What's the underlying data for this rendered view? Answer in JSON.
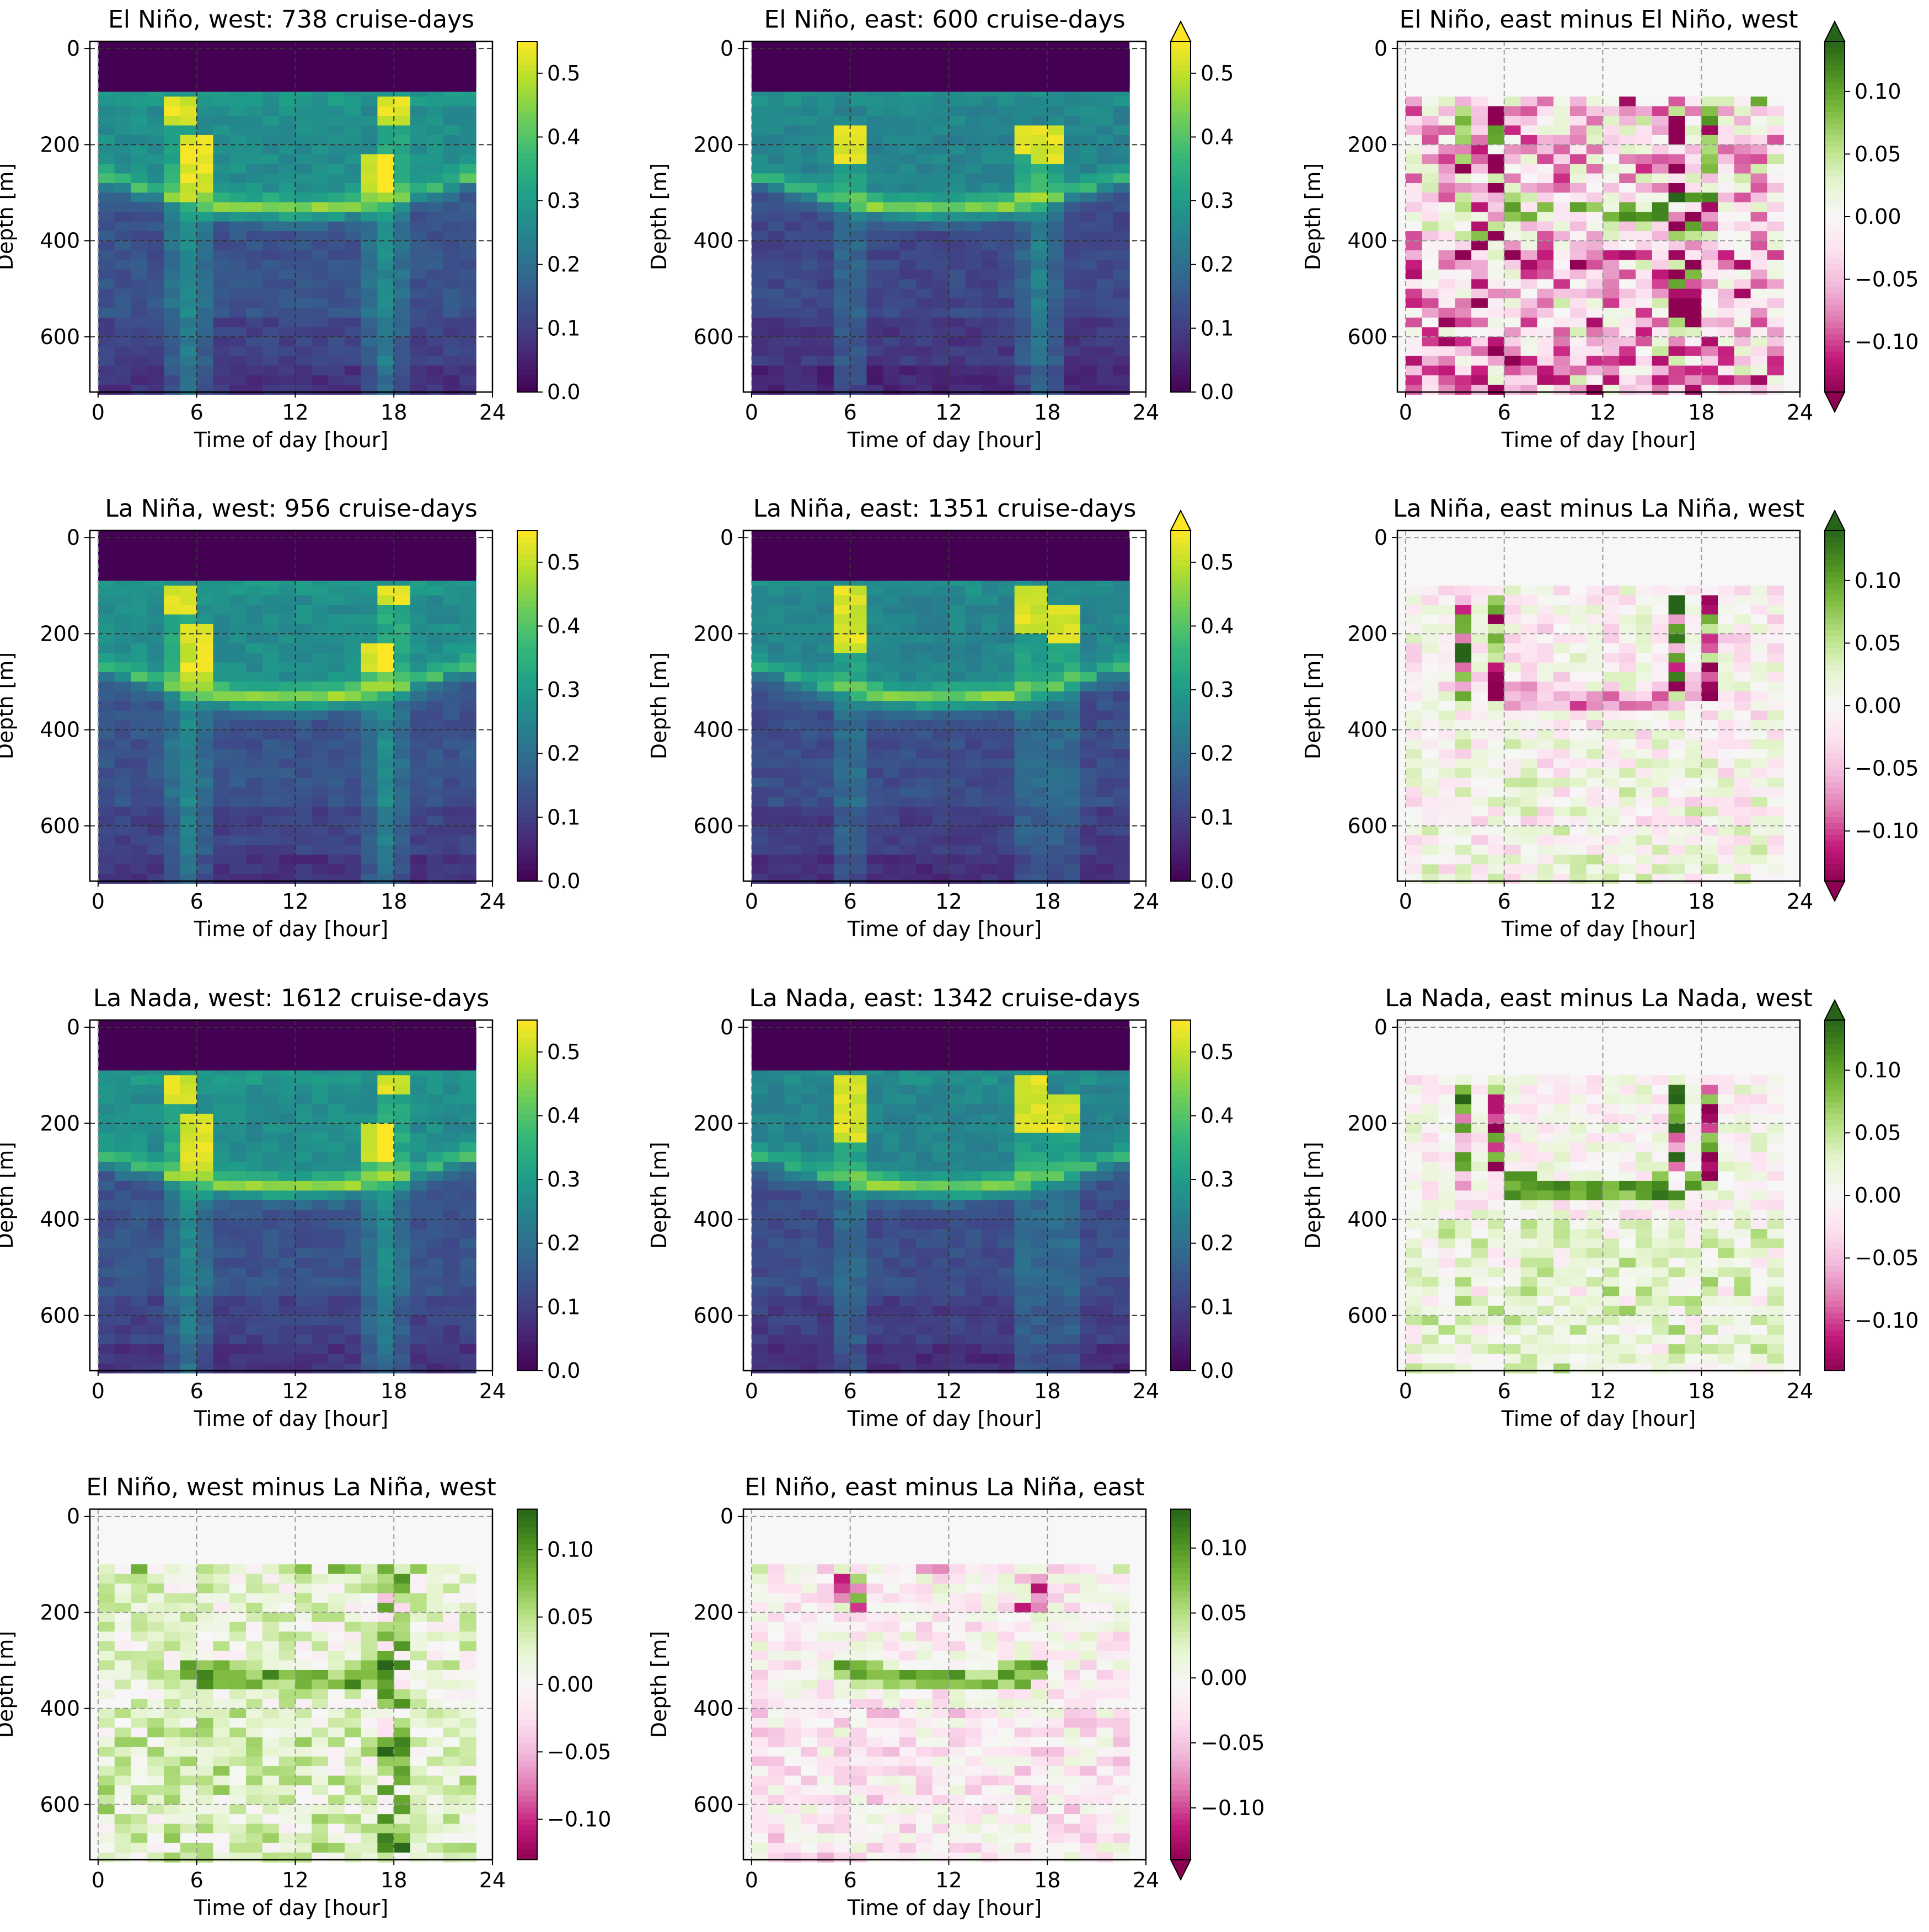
{
  "figure": {
    "xlabel": "Time of day [hour]",
    "ylabel": "Depth [m]",
    "x_ticks": [
      "0",
      "6",
      "12",
      "18",
      "24"
    ],
    "y_ticks": [
      "0",
      "200",
      "400",
      "600"
    ],
    "abs_cbar_ticks": [
      "0.0",
      "0.1",
      "0.2",
      "0.3",
      "0.4",
      "0.5"
    ],
    "diff_cbar_ticks": [
      "0.10",
      "0.05",
      "0.00",
      "−0.05",
      "−0.10"
    ]
  },
  "chart_data": [
    {
      "type": "heatmap",
      "id": "elnino_west",
      "title": "El Niño, west: 738 cruise-days",
      "colormap": "viridis",
      "value_range": [
        0,
        0.55
      ],
      "extend": "neither",
      "x": {
        "label": "Time of day [hour]",
        "range": [
          -0.5,
          24
        ]
      },
      "y": {
        "label": "Depth [m]",
        "range": [
          715,
          -15
        ],
        "inverted": true
      },
      "grid": "dashed at 6,12,18 h and 200,400,600 m",
      "description_values": {
        "empty_top_band_depth_m": [
          0,
          90
        ],
        "background_level": 0.27,
        "deep_level": 0.14,
        "peak": 0.55,
        "peak_times_h": [
          5.5,
          17.5
        ]
      }
    },
    {
      "type": "heatmap",
      "id": "elnino_east",
      "title": "El Niño, east: 600 cruise-days",
      "colormap": "viridis",
      "value_range": [
        0,
        0.55
      ],
      "extend": "max",
      "x": {
        "label": "Time of day [hour]",
        "range": [
          -0.5,
          24
        ]
      },
      "y": {
        "label": "Depth [m]",
        "range": [
          715,
          -15
        ],
        "inverted": true
      },
      "description_values": {
        "background_level": 0.26,
        "deep_level": 0.12,
        "peak": 0.55,
        "peak_times_h": [
          6,
          17.5
        ]
      }
    },
    {
      "type": "heatmap",
      "id": "elnino_diff",
      "title": "El Niño, east minus El Niño, west",
      "colormap": "PiYG",
      "value_range": [
        -0.14,
        0.14
      ],
      "extend": "both",
      "x": {
        "label": "Time of day [hour]",
        "range": [
          -0.5,
          24
        ]
      },
      "y": {
        "label": "Depth [m]",
        "range": [
          715,
          -15
        ],
        "inverted": true
      }
    },
    {
      "type": "heatmap",
      "id": "lanina_west",
      "title": "La Niña, west: 956 cruise-days",
      "colormap": "viridis",
      "value_range": [
        0,
        0.55
      ],
      "extend": "neither",
      "x": {
        "label": "Time of day [hour]",
        "range": [
          -0.5,
          24
        ]
      },
      "y": {
        "label": "Depth [m]",
        "range": [
          715,
          -15
        ],
        "inverted": true
      }
    },
    {
      "type": "heatmap",
      "id": "lanina_east",
      "title": "La Niña, east: 1351 cruise-days",
      "colormap": "viridis",
      "value_range": [
        0,
        0.55
      ],
      "extend": "max",
      "x": {
        "label": "Time of day [hour]",
        "range": [
          -0.5,
          24
        ]
      },
      "y": {
        "label": "Depth [m]",
        "range": [
          715,
          -15
        ],
        "inverted": true
      }
    },
    {
      "type": "heatmap",
      "id": "lanina_diff",
      "title": "La Niña, east minus La Niña, west",
      "colormap": "PiYG",
      "value_range": [
        -0.14,
        0.14
      ],
      "extend": "both",
      "x": {
        "label": "Time of day [hour]",
        "range": [
          -0.5,
          24
        ]
      },
      "y": {
        "label": "Depth [m]",
        "range": [
          715,
          -15
        ],
        "inverted": true
      }
    },
    {
      "type": "heatmap",
      "id": "lanada_west",
      "title": "La Nada, west: 1612 cruise-days",
      "colormap": "viridis",
      "value_range": [
        0,
        0.55
      ],
      "extend": "neither",
      "x": {
        "label": "Time of day [hour]",
        "range": [
          -0.5,
          24
        ]
      },
      "y": {
        "label": "Depth [m]",
        "range": [
          715,
          -15
        ],
        "inverted": true
      }
    },
    {
      "type": "heatmap",
      "id": "lanada_east",
      "title": "La Nada, east: 1342 cruise-days",
      "colormap": "viridis",
      "value_range": [
        0,
        0.55
      ],
      "extend": "neither",
      "x": {
        "label": "Time of day [hour]",
        "range": [
          -0.5,
          24
        ]
      },
      "y": {
        "label": "Depth [m]",
        "range": [
          715,
          -15
        ],
        "inverted": true
      }
    },
    {
      "type": "heatmap",
      "id": "lanada_diff",
      "title": "La Nada, east minus La Nada, west",
      "colormap": "PiYG",
      "value_range": [
        -0.14,
        0.14
      ],
      "extend": "max",
      "x": {
        "label": "Time of day [hour]",
        "range": [
          -0.5,
          24
        ]
      },
      "y": {
        "label": "Depth [m]",
        "range": [
          715,
          -15
        ],
        "inverted": true
      }
    },
    {
      "type": "heatmap",
      "id": "west_diff",
      "title": "El Niño, west minus La Niña, west",
      "colormap": "PiYG",
      "value_range": [
        -0.13,
        0.13
      ],
      "extend": "neither",
      "x": {
        "label": "Time of day [hour]",
        "range": [
          -0.5,
          24
        ]
      },
      "y": {
        "label": "Depth [m]",
        "range": [
          715,
          -15
        ],
        "inverted": true
      }
    },
    {
      "type": "heatmap",
      "id": "east_diff",
      "title": "El Niño, east minus La Niña, east",
      "colormap": "PiYG",
      "value_range": [
        -0.14,
        0.13
      ],
      "extend": "min",
      "x": {
        "label": "Time of day [hour]",
        "range": [
          -0.5,
          24
        ]
      },
      "y": {
        "label": "Depth [m]",
        "range": [
          715,
          -15
        ],
        "inverted": true
      }
    }
  ]
}
